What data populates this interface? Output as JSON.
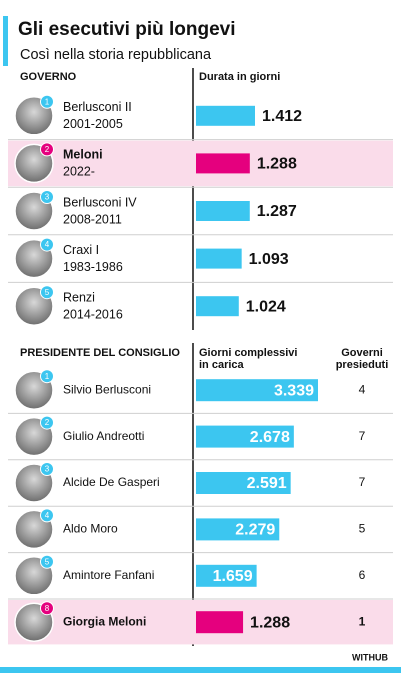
{
  "header": {
    "title": "Gli esecutivi più longevi",
    "subtitle": "Così nella storia repubblicana"
  },
  "chart_data": [
    {
      "type": "bar",
      "category_header": "GOVERNO",
      "value_header": [
        "Durata in giorni"
      ],
      "categories": [
        "Berlusconi II",
        "Meloni",
        "Berlusconi IV",
        "Craxi I",
        "Renzi"
      ],
      "periods": [
        "2001-2005",
        "2022-",
        "2008-2011",
        "1983-1986",
        "2014-2016"
      ],
      "ranks": [
        1,
        2,
        3,
        4,
        5
      ],
      "values": [
        1412,
        1288,
        1287,
        1093,
        1024
      ],
      "value_labels": [
        "1.412",
        "1.288",
        "1.287",
        "1.093",
        "1.024"
      ],
      "color": "#3cc6f0",
      "highlight": 1,
      "highlight_color": "#e5007e",
      "labels_inside": false
    },
    {
      "type": "bar",
      "category_header": "PRESIDENTE DEL CONSIGLIO",
      "value_header": [
        "Giorni complessivi",
        "in carica"
      ],
      "count_header": [
        "Governi",
        "presieduti"
      ],
      "categories": [
        "Silvio Berlusconi",
        "Giulio Andreotti",
        "Alcide De Gasperi",
        "Aldo Moro",
        "Amintore Fanfani",
        "Giorgia Meloni"
      ],
      "ranks": [
        1,
        2,
        3,
        4,
        5,
        8
      ],
      "values": [
        3339,
        2678,
        2591,
        2279,
        1659,
        1288
      ],
      "value_labels": [
        "3.339",
        "2.678",
        "2.591",
        "2.279",
        "1.659",
        "1.288"
      ],
      "counts": [
        4,
        7,
        7,
        5,
        6,
        1
      ],
      "color": "#3cc6f0",
      "highlight": 5,
      "highlight_color": "#e5007e",
      "labels_inside": true
    }
  ],
  "footer": "WITHUB"
}
